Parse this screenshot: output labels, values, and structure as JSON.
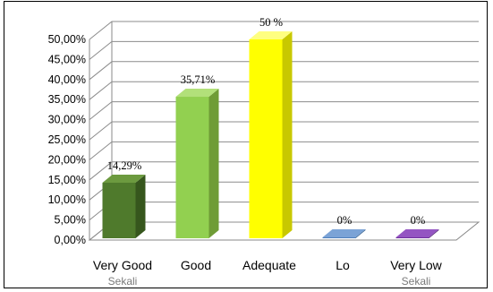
{
  "chart_data": {
    "type": "bar",
    "style": "3d-column",
    "categories": [
      "Very Good",
      "Good",
      "Adequate",
      "Lo",
      "Very Low"
    ],
    "category_overflow_text": [
      "Sekali",
      "",
      "",
      "",
      "Sekali"
    ],
    "values": [
      14.29,
      35.71,
      50,
      0,
      0
    ],
    "data_labels": [
      "14,29%",
      "35,71%",
      "50 %",
      "0%",
      "0%"
    ],
    "ylim": [
      0,
      50
    ],
    "y_ticks": [
      "0,00%",
      "5,00%",
      "10,00%",
      "15,00%",
      "20,00%",
      "25,00%",
      "30,00%",
      "35,00%",
      "40,00%",
      "45,00%",
      "50,00%"
    ],
    "grid": true,
    "legend": "none",
    "colors": [
      "#4f7a2c",
      "#92d050",
      "#ffff00",
      "#4f81bd",
      "#7030a0"
    ],
    "side_colors": [
      "#36561d",
      "#6f9c36",
      "#c8c800",
      "#2f5b8a",
      "#4b1f6e"
    ],
    "top_colors": [
      "#6c9a3f",
      "#b2e07a",
      "#ffff80",
      "#7ba3d6",
      "#9455c2"
    ]
  }
}
